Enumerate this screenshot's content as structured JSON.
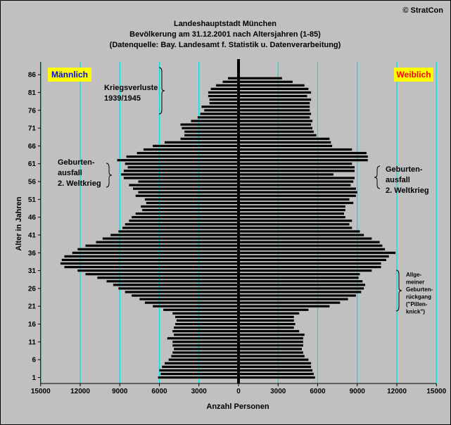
{
  "copyright": "© StratCon",
  "chart_data": {
    "type": "bar",
    "orientation": "horizontal",
    "title": "Landeshauptstadt München",
    "subtitle": "Bevölkerung am 31.12.2001 nach Altersjahren (1-85)",
    "source": "(Datenquelle: Bay. Landesamt f. Statistik u. Datenverarbeitung)",
    "xlabel": "Anzahl Personen",
    "ylabel": "Alter in Jahren",
    "xlim": [
      -15000,
      15000
    ],
    "ylim": [
      1,
      86
    ],
    "x_ticks": [
      -15000,
      -12000,
      -9000,
      -6000,
      -3000,
      0,
      3000,
      6000,
      9000,
      12000,
      15000
    ],
    "x_tick_labels": [
      "15000",
      "12000",
      "9000",
      "6000",
      "3000",
      "0",
      "3000",
      "6000",
      "9000",
      "12000",
      "15000"
    ],
    "y_ticks": [
      1,
      6,
      11,
      16,
      21,
      26,
      31,
      36,
      41,
      46,
      51,
      56,
      61,
      66,
      71,
      76,
      81,
      86
    ],
    "grid": "vertical",
    "grid_color": "#00e0e0",
    "bar_color": "#000000",
    "plot_background": "#c0c0c0",
    "legend_background": "#ffff00",
    "legend_male_color": "#0000ff",
    "legend_female_color": "#ff0000",
    "ages": [
      1,
      2,
      3,
      4,
      5,
      6,
      7,
      8,
      9,
      10,
      11,
      12,
      13,
      14,
      15,
      16,
      17,
      18,
      19,
      20,
      21,
      22,
      23,
      24,
      25,
      26,
      27,
      28,
      29,
      30,
      31,
      32,
      33,
      34,
      35,
      36,
      37,
      38,
      39,
      40,
      41,
      42,
      43,
      44,
      45,
      46,
      47,
      48,
      49,
      50,
      51,
      52,
      53,
      54,
      55,
      56,
      57,
      58,
      59,
      60,
      61,
      62,
      63,
      64,
      65,
      66,
      67,
      68,
      69,
      70,
      71,
      72,
      73,
      74,
      75,
      76,
      77,
      78,
      79,
      80,
      81,
      82,
      83,
      84,
      85
    ],
    "series": [
      {
        "name": "Männlich",
        "values": [
          6100,
          5900,
          6000,
          5800,
          5600,
          5300,
          5100,
          5000,
          4900,
          5000,
          5000,
          5400,
          4900,
          5000,
          4900,
          4800,
          4700,
          4800,
          5000,
          5700,
          6500,
          7100,
          7500,
          8100,
          8600,
          9100,
          9500,
          10000,
          10700,
          11600,
          12200,
          13200,
          13500,
          13400,
          13200,
          12600,
          12200,
          11600,
          10800,
          10300,
          9700,
          9100,
          8800,
          8600,
          8300,
          8100,
          7800,
          7300,
          7400,
          7000,
          7100,
          7800,
          7600,
          8000,
          8300,
          7600,
          8700,
          8900,
          8700,
          8400,
          8600,
          9200,
          8500,
          7700,
          7200,
          6500,
          5600,
          4400,
          4100,
          4100,
          4300,
          4400,
          3600,
          3100,
          2900,
          2600,
          2800,
          2200,
          2200,
          2300,
          2300,
          2100,
          1700,
          1200,
          800
        ]
      },
      {
        "name": "Weiblich",
        "values": [
          5800,
          5700,
          5600,
          5500,
          5500,
          5300,
          5000,
          4900,
          4800,
          4900,
          4900,
          4900,
          5000,
          4600,
          4200,
          4300,
          4200,
          4200,
          4600,
          5300,
          6900,
          7700,
          8300,
          8900,
          9300,
          9500,
          9600,
          9400,
          9100,
          9200,
          10100,
          10800,
          10800,
          11200,
          11400,
          11900,
          11100,
          10900,
          10700,
          10100,
          9500,
          9200,
          8600,
          8400,
          8600,
          8100,
          8000,
          8100,
          8100,
          8700,
          8400,
          8900,
          9000,
          8900,
          8500,
          8700,
          8800,
          7200,
          8800,
          8800,
          8600,
          9800,
          9800,
          9700,
          8600,
          7100,
          7000,
          6900,
          5900,
          5700,
          5600,
          5500,
          5600,
          5400,
          5500,
          5400,
          5400,
          5400,
          5500,
          5200,
          5500,
          5300,
          5000,
          4100,
          3300
        ]
      }
    ],
    "annotations": [
      {
        "id": "kriegsverluste",
        "lines": [
          "Kriegsverluste",
          "1939/1945"
        ]
      },
      {
        "id": "geburtenausfall-left",
        "lines": [
          "Geburten-",
          "ausfall",
          "2. Weltkrieg"
        ]
      },
      {
        "id": "geburtenausfall-right",
        "lines": [
          "Geburten-",
          "ausfall",
          "2. Weltkrieg"
        ]
      },
      {
        "id": "pillenknick",
        "lines": [
          "Allge-",
          "meiner",
          "Geburten-",
          "rückgang",
          "(\"Pillen-",
          "knick\")"
        ]
      }
    ]
  }
}
